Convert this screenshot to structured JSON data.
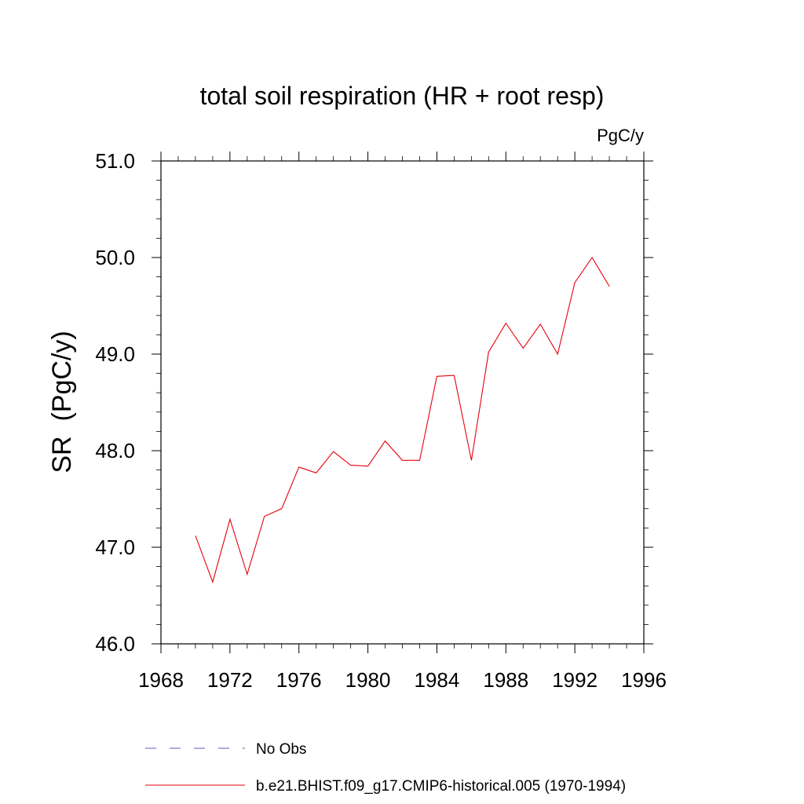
{
  "chart_data": {
    "type": "line",
    "title": "total soil respiration (HR + root resp)",
    "units": "PgC/y",
    "ylabel": "SR  (PgC/y)",
    "xlabel": "",
    "xlim": [
      1968,
      1996
    ],
    "ylim": [
      46.0,
      51.0
    ],
    "x_ticks": [
      "1968",
      "1972",
      "1976",
      "1980",
      "1984",
      "1988",
      "1992",
      "1996"
    ],
    "y_ticks": [
      "46.0",
      "47.0",
      "48.0",
      "49.0",
      "50.0",
      "51.0"
    ],
    "grid": false,
    "legend_position": "bottom",
    "legend": [
      {
        "label": "No Obs",
        "color": "#5b5bb8",
        "style": "dashed"
      },
      {
        "label": "b.e21.BHIST.f09_g17.CMIP6-historical.005 (1970-1994)",
        "color": "#e8000b",
        "style": "solid"
      }
    ],
    "series": [
      {
        "color": "#e8000b",
        "x": [
          1970,
          1971,
          1972,
          1973,
          1974,
          1975,
          1976,
          1977,
          1978,
          1979,
          1980,
          1981,
          1982,
          1983,
          1984,
          1985,
          1986,
          1987,
          1988,
          1989,
          1990,
          1991,
          1992,
          1993,
          1994
        ],
        "values": [
          47.12,
          46.64,
          47.29,
          46.72,
          47.32,
          47.4,
          47.83,
          47.77,
          47.99,
          47.85,
          47.84,
          48.1,
          47.9,
          47.9,
          48.77,
          48.78,
          47.9,
          49.02,
          49.32,
          49.06,
          49.31,
          49.0,
          49.74,
          50.0,
          49.7
        ]
      }
    ]
  }
}
